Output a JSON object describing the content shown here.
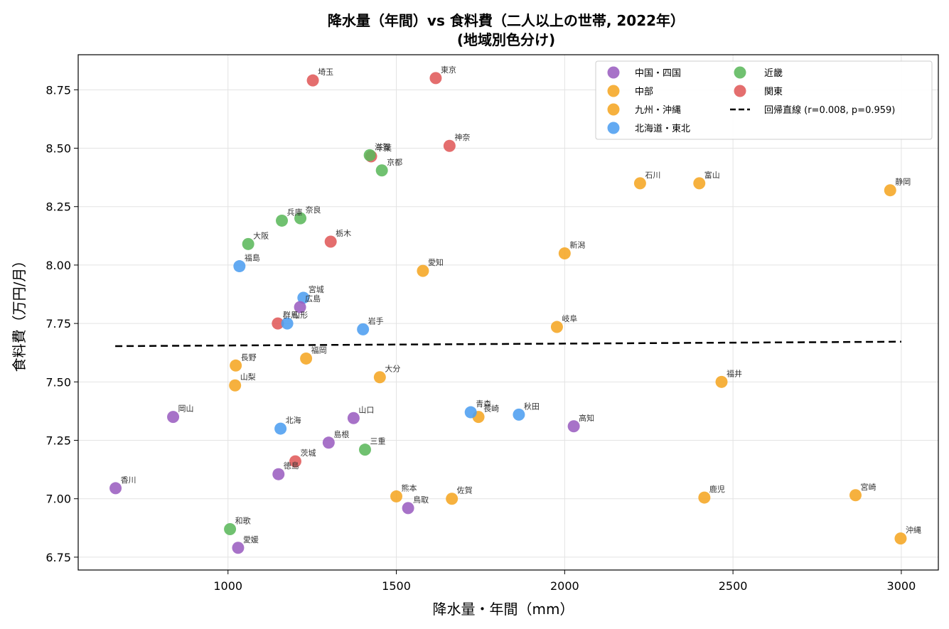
{
  "chart_data": {
    "type": "scatter",
    "title": "降水量（年間）vs 食料費（二人以上の世帯, 2022年）",
    "subtitle": "(地域別色分け)",
    "xlabel": "降水量・年間（mm）",
    "ylabel": "食料費（万円/月）",
    "xlim": [
      555,
      3110
    ],
    "ylim": [
      6.695,
      8.9
    ],
    "xticks": [
      1000,
      1500,
      2000,
      2500,
      3000
    ],
    "yticks": [
      6.75,
      7.0,
      7.25,
      7.5,
      7.75,
      8.0,
      8.25,
      8.5,
      8.75
    ],
    "ytick_labels": [
      "6.75",
      "7.00",
      "7.25",
      "7.50",
      "7.75",
      "8.00",
      "8.25",
      "8.50",
      "8.75"
    ],
    "grid": true,
    "legend_position": "top-right",
    "colors": {
      "中国・四国": "#9b5fc0",
      "中部": "#f5a623",
      "九州・沖縄": "#f5a623",
      "北海道・東北": "#4d9ef0",
      "近畿": "#5cb85c",
      "関東": "#e05a5a"
    },
    "legend": [
      {
        "name": "中国・四国",
        "kind": "marker",
        "color": "#9b5fc0"
      },
      {
        "name": "中部",
        "kind": "marker",
        "color": "#f5a623"
      },
      {
        "name": "九州・沖縄",
        "kind": "marker",
        "color": "#f5a623"
      },
      {
        "name": "北海道・東北",
        "kind": "marker",
        "color": "#4d9ef0"
      },
      {
        "name": "近畿",
        "kind": "marker",
        "color": "#5cb85c"
      },
      {
        "name": "関東",
        "kind": "marker",
        "color": "#e05a5a"
      },
      {
        "name": "回帰直線 (r=0.008, p=0.959)",
        "kind": "line",
        "color": "#000000"
      }
    ],
    "regression": {
      "x": [
        665,
        3000
      ],
      "y": [
        7.653,
        7.672
      ]
    },
    "points": [
      {
        "label": "埼玉",
        "region": "関東",
        "x": 1252,
        "y": 8.79
      },
      {
        "label": "東京",
        "region": "関東",
        "x": 1617,
        "y": 8.8
      },
      {
        "label": "神奈",
        "region": "関東",
        "x": 1658,
        "y": 8.51
      },
      {
        "label": "千葉",
        "region": "関東",
        "x": 1425,
        "y": 8.465
      },
      {
        "label": "栃木",
        "region": "関東",
        "x": 1305,
        "y": 8.1
      },
      {
        "label": "群馬",
        "region": "関東",
        "x": 1148,
        "y": 7.75
      },
      {
        "label": "茨城",
        "region": "関東",
        "x": 1200,
        "y": 7.16
      },
      {
        "label": "滋賀",
        "region": "近畿",
        "x": 1421,
        "y": 8.47
      },
      {
        "label": "京都",
        "region": "近畿",
        "x": 1457,
        "y": 8.405
      },
      {
        "label": "奈良",
        "region": "近畿",
        "x": 1215,
        "y": 8.2
      },
      {
        "label": "兵庫",
        "region": "近畿",
        "x": 1160,
        "y": 8.19
      },
      {
        "label": "大阪",
        "region": "近畿",
        "x": 1060,
        "y": 8.09
      },
      {
        "label": "三重",
        "region": "近畿",
        "x": 1407,
        "y": 7.21
      },
      {
        "label": "和歌",
        "region": "近畿",
        "x": 1006,
        "y": 6.87
      },
      {
        "label": "石川",
        "region": "中部",
        "x": 2224,
        "y": 8.35
      },
      {
        "label": "富山",
        "region": "中部",
        "x": 2400,
        "y": 8.35
      },
      {
        "label": "静岡",
        "region": "中部",
        "x": 2967,
        "y": 8.32
      },
      {
        "label": "新潟",
        "region": "中部",
        "x": 2000,
        "y": 8.05
      },
      {
        "label": "愛知",
        "region": "中部",
        "x": 1579,
        "y": 7.975
      },
      {
        "label": "岐阜",
        "region": "中部",
        "x": 1977,
        "y": 7.735
      },
      {
        "label": "長野",
        "region": "中部",
        "x": 1023,
        "y": 7.57
      },
      {
        "label": "山梨",
        "region": "中部",
        "x": 1021,
        "y": 7.485
      },
      {
        "label": "福井",
        "region": "中部",
        "x": 2466,
        "y": 7.5
      },
      {
        "label": "福岡",
        "region": "九州・沖縄",
        "x": 1232,
        "y": 7.6
      },
      {
        "label": "大分",
        "region": "九州・沖縄",
        "x": 1451,
        "y": 7.52
      },
      {
        "label": "長崎",
        "region": "九州・沖縄",
        "x": 1744,
        "y": 7.35
      },
      {
        "label": "熊本",
        "region": "九州・沖縄",
        "x": 1500,
        "y": 7.01
      },
      {
        "label": "佐賀",
        "region": "九州・沖縄",
        "x": 1665,
        "y": 7.0
      },
      {
        "label": "鹿児",
        "region": "九州・沖縄",
        "x": 2415,
        "y": 7.005
      },
      {
        "label": "宮崎",
        "region": "九州・沖縄",
        "x": 2864,
        "y": 7.015
      },
      {
        "label": "沖縄",
        "region": "九州・沖縄",
        "x": 2998,
        "y": 6.83
      },
      {
        "label": "福島",
        "region": "北海道・東北",
        "x": 1034,
        "y": 7.995
      },
      {
        "label": "宮城",
        "region": "北海道・東北",
        "x": 1224,
        "y": 7.86
      },
      {
        "label": "山形",
        "region": "北海道・東北",
        "x": 1176,
        "y": 7.75
      },
      {
        "label": "岩手",
        "region": "北海道・東北",
        "x": 1401,
        "y": 7.725
      },
      {
        "label": "北海",
        "region": "北海道・東北",
        "x": 1156,
        "y": 7.3
      },
      {
        "label": "青森",
        "region": "北海道・東北",
        "x": 1721,
        "y": 7.37
      },
      {
        "label": "秋田",
        "region": "北海道・東北",
        "x": 1864,
        "y": 7.36
      },
      {
        "label": "広島",
        "region": "中国・四国",
        "x": 1214,
        "y": 7.82
      },
      {
        "label": "岡山",
        "region": "中国・四国",
        "x": 837,
        "y": 7.35
      },
      {
        "label": "山口",
        "region": "中国・四国",
        "x": 1373,
        "y": 7.345
      },
      {
        "label": "高知",
        "region": "中国・四国",
        "x": 2027,
        "y": 7.31
      },
      {
        "label": "島根",
        "region": "中国・四国",
        "x": 1299,
        "y": 7.24
      },
      {
        "label": "徳島",
        "region": "中国・四国",
        "x": 1150,
        "y": 7.105
      },
      {
        "label": "香川",
        "region": "中国・四国",
        "x": 666,
        "y": 7.045
      },
      {
        "label": "鳥取",
        "region": "中国・四国",
        "x": 1535,
        "y": 6.96
      },
      {
        "label": "愛媛",
        "region": "中国・四国",
        "x": 1030,
        "y": 6.79
      }
    ]
  }
}
